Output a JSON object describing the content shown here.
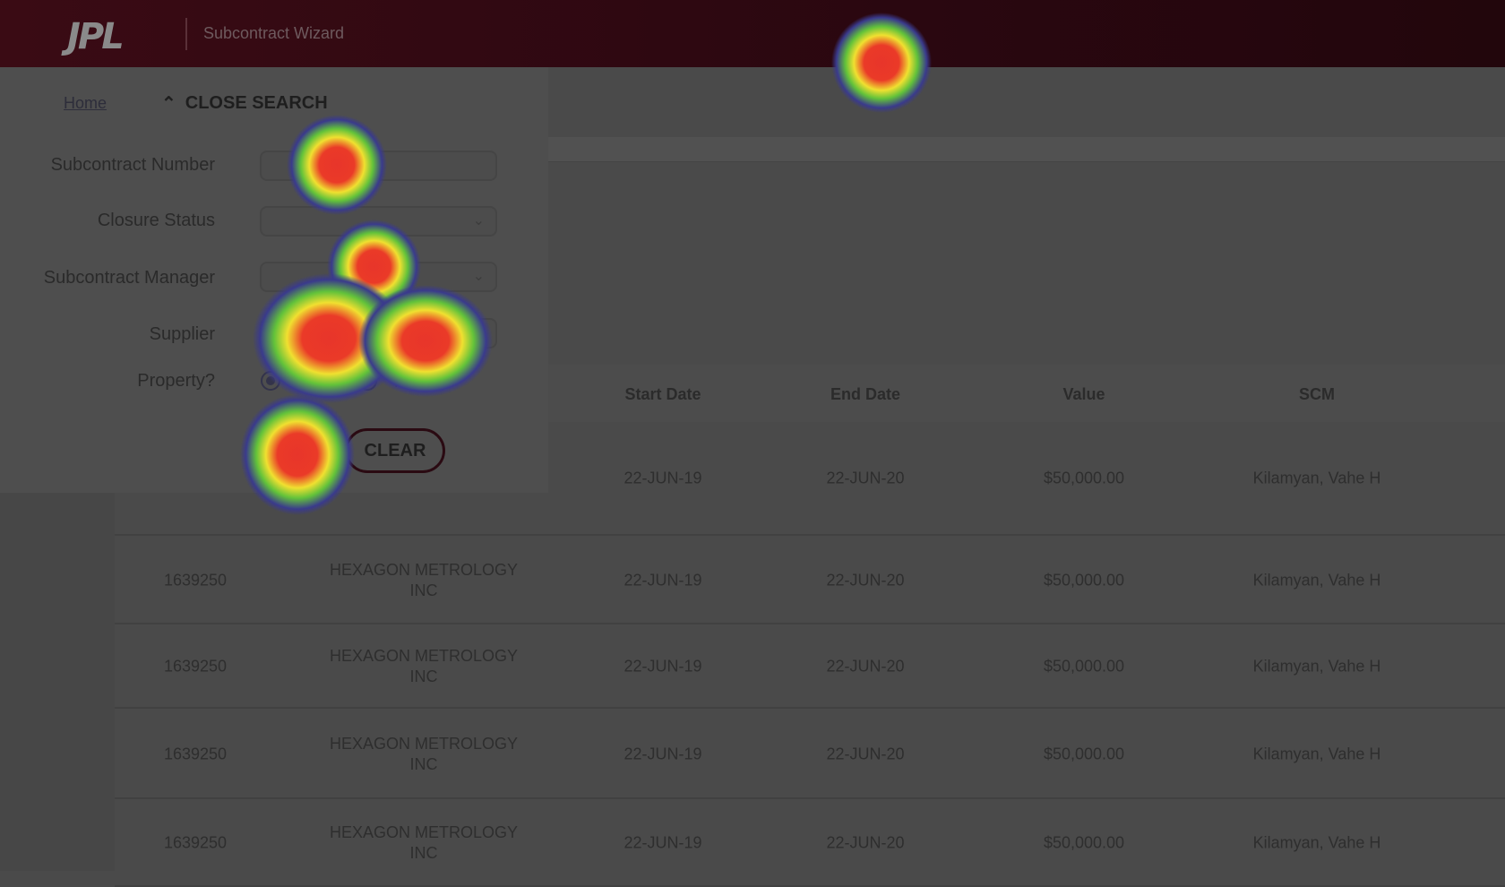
{
  "header": {
    "logo": "JPL",
    "app_title": "Subcontract Wizard"
  },
  "nav": {
    "home": "Home",
    "close_search": "CLOSE SEARCH"
  },
  "search": {
    "fields": [
      {
        "label": "Subcontract Number",
        "value": ""
      },
      {
        "label": "Closure Status",
        "value": ""
      },
      {
        "label": "Subcontract Manager",
        "value": ""
      },
      {
        "label": "Supplier",
        "value": ""
      }
    ],
    "property_label": "Property?",
    "property_options": [
      "Yes",
      "No"
    ],
    "property_selected": "Yes",
    "clear_label": "CLEAR"
  },
  "table": {
    "headers": [
      "Start Date",
      "End Date",
      "Value",
      "SCM"
    ],
    "rows": [
      {
        "number": "",
        "supplier": [
          "",
          ""
        ],
        "start": "22-JUN-19",
        "end": "22-JUN-20",
        "value": "$50,000.00",
        "scm": "Kilamyan, Vahe H"
      },
      {
        "number": "1639250",
        "supplier": [
          "HEXAGON METROLOGY",
          "INC"
        ],
        "start": "22-JUN-19",
        "end": "22-JUN-20",
        "value": "$50,000.00",
        "scm": "Kilamyan, Vahe H"
      },
      {
        "number": "1639250",
        "supplier": [
          "HEXAGON METROLOGY",
          "INC"
        ],
        "start": "22-JUN-19",
        "end": "22-JUN-20",
        "value": "$50,000.00",
        "scm": "Kilamyan, Vahe H"
      },
      {
        "number": "1639250",
        "supplier": [
          "HEXAGON METROLOGY",
          "INC"
        ],
        "start": "22-JUN-19",
        "end": "22-JUN-20",
        "value": "$50,000.00",
        "scm": "Kilamyan, Vahe H"
      },
      {
        "number": "1639250",
        "supplier": [
          "HEXAGON METROLOGY",
          "INC"
        ],
        "start": "22-JUN-19",
        "end": "22-JUN-20",
        "value": "$50,000.00",
        "scm": "Kilamyan, Vahe H"
      }
    ]
  },
  "colors": {
    "header": "#2a0710",
    "overlay_bg": "#4a4a4a",
    "heat_hot": "#e8352a"
  }
}
